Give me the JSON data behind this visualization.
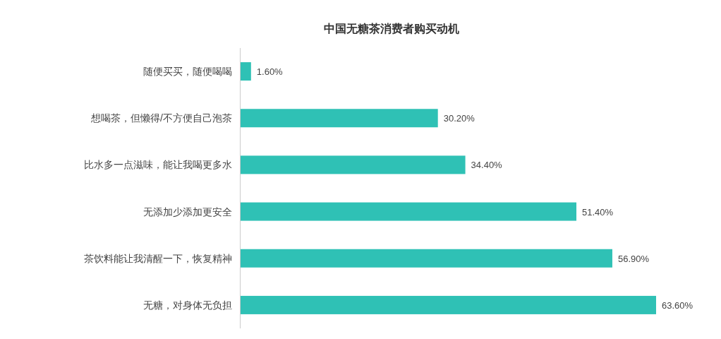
{
  "chart_data": {
    "type": "bar",
    "orientation": "horizontal",
    "title": "中国无糖茶消费者购买动机",
    "categories": [
      "随便买买，随便喝喝",
      "想喝茶，但懒得/不方便自己泡茶",
      "比水多一点滋味，能让我喝更多水",
      "无添加少添加更安全",
      "茶饮料能让我清醒一下，恢复精神",
      "无糖，对身体无负担"
    ],
    "values": [
      1.6,
      30.2,
      34.4,
      51.4,
      56.9,
      63.6
    ],
    "value_labels": [
      "1.60%",
      "30.20%",
      "34.40%",
      "51.40%",
      "56.90%",
      "63.60%"
    ],
    "color": "#2fc1b5"
  }
}
